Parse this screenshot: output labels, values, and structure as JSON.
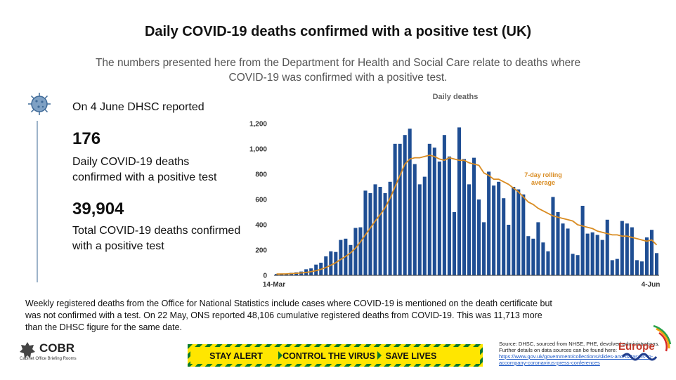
{
  "header": {
    "title": "Daily COVID-19 deaths confirmed with a positive test (UK)",
    "subtitle": "The numbers presented here from the Department for Health and Social Care relate to deaths where COVID-19 was confirmed with a positive test."
  },
  "summary": {
    "reported_label": "On 4 June DHSC reported",
    "daily_value": "176",
    "daily_desc": "Daily COVID-19 deaths confirmed with a positive test",
    "total_value": "39,904",
    "total_desc": "Total COVID-19 deaths confirmed with a positive test"
  },
  "footnote": "Weekly registered deaths from the Office for National Statistics include cases where COVID-19 is mentioned on the death certificate but was not confirmed with a test. On 22 May, ONS reported 48,106 cumulative registered deaths from COVID-19. This was 11,713 more than the DHSC figure for the same date.",
  "footer": {
    "cobr_text": "COBR",
    "cobr_sub": "Cabinet Office Briefing Rooms",
    "banner_parts": [
      "STAY ALERT",
      "CONTROL THE VIRUS",
      "SAVE LIVES"
    ],
    "source_text": "Source: DHSC, sourced from NHSE, PHE, devolved administrations. Further details on data sources can be found here:",
    "source_link": "https://www.gov.uk/government/collections/slides-and-datasets-to-accompany-coronavirus-press-conferences",
    "watermark": "Europe"
  },
  "colors": {
    "bar": "#1f4e93",
    "rolling_avg": "#d98c22",
    "banner_yellow": "#ffe600",
    "banner_green": "#0a7a2a"
  },
  "chart_data": {
    "type": "bar",
    "title": "Daily deaths",
    "x_start_label": "14-Mar",
    "x_end_label": "4-Jun",
    "ylim": [
      0,
      1200
    ],
    "yticks": [
      0,
      200,
      400,
      600,
      800,
      1000,
      1200
    ],
    "ytick_labels": [
      "0",
      "200",
      "400",
      "600",
      "800",
      "1,000",
      "1,200"
    ],
    "grid": false,
    "legend": "inline",
    "values": [
      10,
      12,
      14,
      20,
      24,
      30,
      48,
      55,
      85,
      100,
      150,
      190,
      185,
      280,
      290,
      240,
      375,
      380,
      670,
      650,
      720,
      700,
      650,
      740,
      1040,
      1040,
      1110,
      1160,
      880,
      720,
      780,
      1040,
      1010,
      900,
      1110,
      940,
      500,
      1170,
      920,
      720,
      930,
      600,
      420,
      820,
      710,
      740,
      610,
      400,
      700,
      680,
      640,
      310,
      290,
      420,
      260,
      190,
      620,
      500,
      410,
      370,
      170,
      160,
      550,
      330,
      340,
      320,
      280,
      440,
      120,
      130,
      430,
      410,
      380,
      120,
      110,
      300,
      360,
      176
    ],
    "series": [
      {
        "name": "Daily deaths",
        "type": "bar"
      },
      {
        "name": "7-day rolling average",
        "type": "line",
        "values": [
          10,
          11,
          12,
          14,
          16,
          19,
          23,
          29,
          37,
          48,
          62,
          80,
          100,
          126,
          150,
          178,
          215,
          265,
          320,
          375,
          430,
          480,
          535,
          610,
          700,
          790,
          880,
          920,
          930,
          930,
          940,
          950,
          940,
          920,
          910,
          930,
          920,
          910,
          910,
          890,
          880,
          870,
          810,
          790,
          760,
          760,
          740,
          720,
          690,
          660,
          620,
          580,
          560,
          530,
          510,
          490,
          470,
          460,
          450,
          440,
          430,
          400,
          390,
          380,
          370,
          350,
          340,
          330,
          320,
          320,
          310,
          310,
          300,
          290,
          280,
          270,
          280,
          240
        ]
      }
    ],
    "annotation": "7-day rolling average"
  }
}
